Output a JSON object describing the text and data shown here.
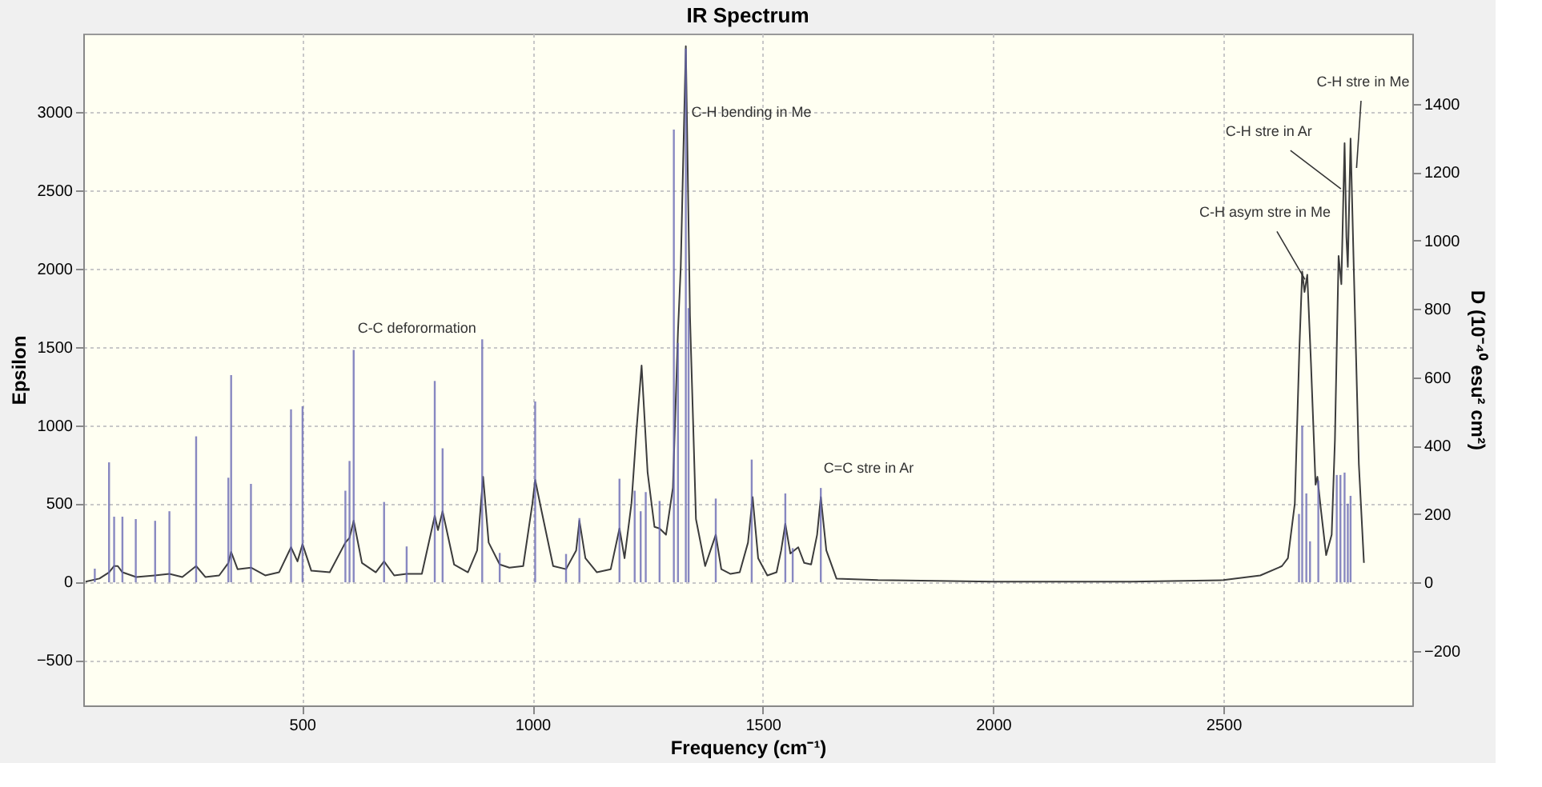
{
  "chart_data": {
    "type": "line",
    "title": "IR Spectrum",
    "xlabel": "Frequency (cm⁻¹)",
    "ylabel": "Epsilon",
    "y2label": "D (10⁻⁴⁰ esu² cm²)",
    "xlim": [
      25,
      2910
    ],
    "xticks": [
      500,
      1000,
      1500,
      2000,
      2500
    ],
    "ylim": [
      -790,
      3500
    ],
    "yticks": [
      -500,
      0,
      500,
      1000,
      1500,
      2000,
      2500,
      3000
    ],
    "y2lim": [
      -360,
      1605
    ],
    "y2ticks": [
      -200,
      0,
      200,
      400,
      600,
      800,
      1000,
      1200,
      1400
    ],
    "grid": true,
    "series": [
      {
        "color": "#3c3c3c",
        "x": [
          30,
          60,
          81,
          92,
          100,
          110,
          140,
          180,
          212,
          240,
          270,
          290,
          320,
          340,
          346,
          360,
          389,
          420,
          450,
          476,
          490,
          501,
          520,
          560,
          594,
          603,
          612,
          630,
          660,
          678,
          700,
          727,
          760,
          788,
          795,
          805,
          830,
          860,
          880,
          893,
          905,
          929,
          950,
          980,
          1000,
          1006,
          1020,
          1045,
          1073,
          1095,
          1102,
          1115,
          1140,
          1170,
          1189,
          1200,
          1215,
          1226,
          1237,
          1250,
          1265,
          1276,
          1290,
          1305,
          1316,
          1322,
          1333,
          1342,
          1355,
          1375,
          1398,
          1410,
          1430,
          1450,
          1468,
          1478,
          1490,
          1510,
          1530,
          1540,
          1549,
          1560,
          1577,
          1590,
          1605,
          1618,
          1626,
          1638,
          1660,
          1750,
          2000,
          2300,
          2500,
          2580,
          2620,
          2627,
          2640,
          2655,
          2665,
          2671,
          2676,
          2682,
          2690,
          2700,
          2704,
          2712,
          2723,
          2735,
          2742,
          2750,
          2756,
          2763,
          2767,
          2770,
          2776,
          2783,
          2794,
          2805
        ],
        "values": [
          0,
          20,
          60,
          100,
          100,
          60,
          30,
          40,
          50,
          30,
          100,
          30,
          40,
          120,
          190,
          80,
          90,
          40,
          60,
          220,
          130,
          240,
          70,
          60,
          250,
          280,
          390,
          120,
          60,
          130,
          40,
          50,
          50,
          420,
          330,
          450,
          110,
          60,
          200,
          670,
          250,
          110,
          90,
          100,
          500,
          650,
          450,
          100,
          80,
          200,
          390,
          150,
          60,
          80,
          340,
          150,
          500,
          970,
          1380,
          700,
          350,
          340,
          300,
          600,
          1600,
          2010,
          3420,
          1700,
          400,
          100,
          300,
          80,
          50,
          60,
          250,
          540,
          150,
          40,
          60,
          200,
          370,
          180,
          220,
          120,
          110,
          300,
          540,
          200,
          20,
          10,
          0,
          0,
          10,
          40,
          90,
          100,
          150,
          500,
          1500,
          1980,
          1850,
          1960,
          1400,
          620,
          670,
          450,
          170,
          300,
          900,
          2080,
          1900,
          2800,
          2200,
          2010,
          2830,
          2000,
          750,
          120
        ]
      },
      {
        "type": "bar",
        "axis": "y2",
        "color": "#6a6ab4",
        "x": [
          50,
          81,
          92,
          110,
          139,
          181,
          212,
          270,
          340,
          346,
          389,
          476,
          501,
          594,
          603,
          612,
          678,
          727,
          788,
          805,
          891,
          929,
          1006,
          1073,
          1102,
          1189,
          1222,
          1235,
          1246,
          1276,
          1307,
          1316,
          1333,
          1339,
          1398,
          1476,
          1549,
          1565,
          1626,
          2664,
          2671,
          2680,
          2688,
          2706,
          2746,
          2754,
          2763,
          2770,
          2776
        ],
        "values": [
          40,
          351,
          192,
          192,
          185,
          180,
          208,
          427,
          306,
          606,
          288,
          506,
          515,
          268,
          355,
          680,
          235,
          105,
          589,
          392,
          711,
          86,
          529,
          83,
          188,
          303,
          268,
          208,
          264,
          238,
          1324,
          700,
          1561,
          802,
          245,
          359,
          260,
          100,
          276,
          200,
          458,
          260,
          120,
          298,
          314,
          314,
          321,
          230,
          253
        ]
      }
    ],
    "annotations": [
      "C-C deforormation",
      {
        "text": "C-H bending in Me",
        "x": 1345,
        "y": 3000
      },
      "C=C stre in Ar",
      {
        "text": "C-H asym stre in Me",
        "x": 2677,
        "y": 1930
      },
      {
        "text": "C-H stre in Ar",
        "x": 2755,
        "y": 2509
      },
      {
        "text": "C-H stre in Me",
        "x": 2789,
        "y": 2642
      }
    ]
  }
}
